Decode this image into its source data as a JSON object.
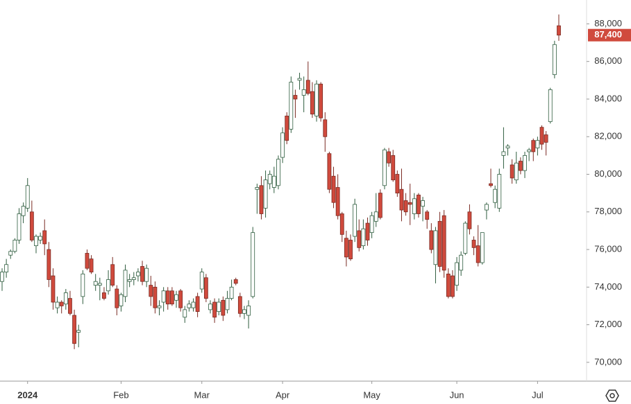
{
  "chart_data": {
    "type": "candlestick",
    "up_color": "#ffffff",
    "up_border": "#2e5c3e",
    "down_color": "#d04a3d",
    "down_border": "#7a2a22",
    "ylim": [
      69000,
      88900
    ],
    "yticks": [
      {
        "value": 70000,
        "label": "70,000"
      },
      {
        "value": 72000,
        "label": "72,000"
      },
      {
        "value": 74000,
        "label": "74,000"
      },
      {
        "value": 76000,
        "label": "76,000"
      },
      {
        "value": 78000,
        "label": "78,000"
      },
      {
        "value": 80000,
        "label": "80,000"
      },
      {
        "value": 82000,
        "label": "82,000"
      },
      {
        "value": 84000,
        "label": "84,000"
      },
      {
        "value": 86000,
        "label": "86,000"
      },
      {
        "value": 88000,
        "label": "88,000"
      }
    ],
    "xticks": [
      {
        "value": 6,
        "label": "2024"
      },
      {
        "value": 28,
        "label": "Feb"
      },
      {
        "value": 47,
        "label": "Mar"
      },
      {
        "value": 66,
        "label": "Apr"
      },
      {
        "value": 87,
        "label": "May"
      },
      {
        "value": 107,
        "label": "Jun"
      },
      {
        "value": 126,
        "label": "Jul"
      }
    ],
    "last_label": "87,400",
    "ohlc": [
      [
        74300,
        75000,
        73800,
        74800
      ],
      [
        74800,
        75500,
        74500,
        75200
      ],
      [
        75700,
        76000,
        75500,
        75900
      ],
      [
        75900,
        76600,
        75800,
        76500
      ],
      [
        76500,
        78200,
        76300,
        77900
      ],
      [
        77800,
        78500,
        77400,
        78300
      ],
      [
        78200,
        79800,
        78000,
        79400
      ],
      [
        78000,
        78600,
        76400,
        76500
      ],
      [
        76200,
        76800,
        75800,
        76700
      ],
      [
        76500,
        76900,
        76300,
        76700
      ],
      [
        77000,
        77600,
        75700,
        76300
      ],
      [
        76000,
        76400,
        74000,
        74400
      ],
      [
        74600,
        75000,
        72800,
        73200
      ],
      [
        72900,
        73500,
        72600,
        73200
      ],
      [
        73200,
        73300,
        72600,
        73000
      ],
      [
        73100,
        73900,
        72800,
        73700
      ],
      [
        73400,
        73800,
        72500,
        72600
      ],
      [
        72500,
        72800,
        70700,
        71000
      ],
      [
        71600,
        72000,
        70800,
        71700
      ],
      [
        73500,
        74900,
        73100,
        74700
      ],
      [
        75800,
        76000,
        74900,
        75000
      ],
      [
        75500,
        75700,
        74700,
        74800
      ],
      [
        74100,
        74700,
        73800,
        74300
      ],
      [
        74100,
        74500,
        73300,
        74200
      ],
      [
        73700,
        74000,
        73300,
        73400
      ],
      [
        73800,
        74900,
        73600,
        74400
      ],
      [
        75200,
        75600,
        74000,
        74100
      ],
      [
        73900,
        74100,
        72500,
        72900
      ],
      [
        73000,
        73700,
        72700,
        73600
      ],
      [
        73500,
        75200,
        73200,
        74900
      ],
      [
        74300,
        74700,
        74000,
        74400
      ],
      [
        74400,
        74800,
        74100,
        74500
      ],
      [
        74600,
        75000,
        74300,
        74800
      ],
      [
        75100,
        75400,
        74100,
        74300
      ],
      [
        74300,
        75200,
        74000,
        75000
      ],
      [
        74100,
        74600,
        73000,
        73500
      ],
      [
        74000,
        74300,
        72600,
        72900
      ],
      [
        72900,
        73300,
        72500,
        73000
      ],
      [
        73200,
        74000,
        72700,
        73800
      ],
      [
        73800,
        74000,
        72800,
        73100
      ],
      [
        73800,
        74000,
        73000,
        73100
      ],
      [
        73300,
        73800,
        72900,
        73600
      ],
      [
        73800,
        73900,
        72700,
        72900
      ],
      [
        72400,
        73000,
        72100,
        72800
      ],
      [
        72900,
        73300,
        72700,
        73100
      ],
      [
        72900,
        73400,
        72700,
        73200
      ],
      [
        73500,
        73700,
        72400,
        72700
      ],
      [
        73900,
        75000,
        73700,
        74800
      ],
      [
        74500,
        74700,
        73200,
        73400
      ],
      [
        72800,
        73300,
        72600,
        73100
      ],
      [
        73200,
        73400,
        72100,
        72400
      ],
      [
        72700,
        73400,
        72500,
        73200
      ],
      [
        73300,
        73500,
        72200,
        72500
      ],
      [
        72800,
        73800,
        72600,
        73400
      ],
      [
        73400,
        74400,
        73300,
        74000
      ],
      [
        74400,
        74500,
        74100,
        74200
      ],
      [
        73500,
        73700,
        72400,
        72600
      ],
      [
        72600,
        73000,
        72300,
        72800
      ],
      [
        72500,
        73300,
        71800,
        73000
      ],
      [
        73500,
        77200,
        73400,
        76900
      ],
      [
        79200,
        79500,
        77900,
        79300
      ],
      [
        79400,
        79900,
        77600,
        77900
      ],
      [
        78200,
        80200,
        77700,
        79700
      ],
      [
        79500,
        80200,
        79200,
        80000
      ],
      [
        79300,
        80400,
        79000,
        79900
      ],
      [
        79400,
        81000,
        79200,
        80800
      ],
      [
        80900,
        82500,
        80600,
        82200
      ],
      [
        83100,
        83300,
        81600,
        81800
      ],
      [
        82400,
        85200,
        82200,
        84900
      ],
      [
        84200,
        84500,
        83000,
        84000
      ],
      [
        85000,
        85400,
        84500,
        85100
      ],
      [
        84200,
        85200,
        83300,
        84500
      ],
      [
        85000,
        86000,
        84200,
        84300
      ],
      [
        84400,
        84900,
        83000,
        83200
      ],
      [
        83100,
        85000,
        82800,
        84800
      ],
      [
        84800,
        84900,
        82800,
        83000
      ],
      [
        82900,
        83300,
        81200,
        82000
      ],
      [
        81100,
        81200,
        79000,
        79200
      ],
      [
        79900,
        80400,
        78200,
        78500
      ],
      [
        79300,
        80000,
        77600,
        77800
      ],
      [
        77900,
        78000,
        76400,
        76800
      ],
      [
        76600,
        77000,
        75100,
        75600
      ],
      [
        76500,
        76800,
        75400,
        75500
      ],
      [
        76700,
        78700,
        76400,
        78400
      ],
      [
        77000,
        77600,
        75900,
        76100
      ],
      [
        76200,
        77600,
        76000,
        77100
      ],
      [
        77400,
        77700,
        76200,
        76500
      ],
      [
        76900,
        78000,
        76600,
        77800
      ],
      [
        77500,
        79000,
        77200,
        78000
      ],
      [
        79000,
        79200,
        77600,
        77700
      ],
      [
        79400,
        81400,
        79200,
        81300
      ],
      [
        81200,
        81400,
        80400,
        80600
      ],
      [
        81000,
        81300,
        79600,
        79700
      ],
      [
        80000,
        80200,
        78800,
        79000
      ],
      [
        79200,
        80300,
        77500,
        78100
      ],
      [
        78600,
        79000,
        77800,
        78000
      ],
      [
        78500,
        79500,
        77300,
        78400
      ],
      [
        77900,
        79000,
        77600,
        78700
      ],
      [
        78900,
        79000,
        77700,
        77900
      ],
      [
        78300,
        78800,
        77500,
        78600
      ],
      [
        78000,
        78100,
        77100,
        77600
      ],
      [
        77000,
        77400,
        75800,
        76000
      ],
      [
        75200,
        77200,
        74200,
        77000
      ],
      [
        77500,
        78000,
        74800,
        75100
      ],
      [
        77800,
        78100,
        74500,
        74900
      ],
      [
        74700,
        75000,
        73400,
        73500
      ],
      [
        74600,
        74900,
        73400,
        73500
      ],
      [
        74100,
        75600,
        73800,
        75300
      ],
      [
        74900,
        75900,
        74600,
        75700
      ],
      [
        75800,
        77500,
        75700,
        77400
      ],
      [
        78000,
        78400,
        76800,
        77100
      ],
      [
        76500,
        76700,
        75700,
        76100
      ],
      [
        76200,
        77300,
        75100,
        75300
      ],
      [
        75300,
        76900,
        75200,
        76900
      ],
      [
        78100,
        78500,
        77600,
        78400
      ],
      [
        79500,
        80300,
        79300,
        79400
      ],
      [
        78500,
        79400,
        78200,
        79200
      ],
      [
        78200,
        80300,
        78000,
        80000
      ],
      [
        81000,
        82500,
        80300,
        81200
      ],
      [
        81400,
        81600,
        81000,
        81500
      ],
      [
        80500,
        80800,
        79500,
        79800
      ],
      [
        79700,
        81200,
        79500,
        80600
      ],
      [
        80700,
        80900,
        80000,
        80200
      ],
      [
        80200,
        81200,
        79800,
        81000
      ],
      [
        81200,
        81400,
        80700,
        81300
      ],
      [
        81800,
        81900,
        80700,
        81200
      ],
      [
        81400,
        82000,
        81000,
        81800
      ],
      [
        82500,
        82600,
        81300,
        81600
      ],
      [
        82100,
        82300,
        81000,
        81700
      ],
      [
        82800,
        84600,
        82700,
        84500
      ],
      [
        85300,
        87100,
        85100,
        86900
      ],
      [
        87900,
        88500,
        87100,
        87400
      ]
    ]
  }
}
